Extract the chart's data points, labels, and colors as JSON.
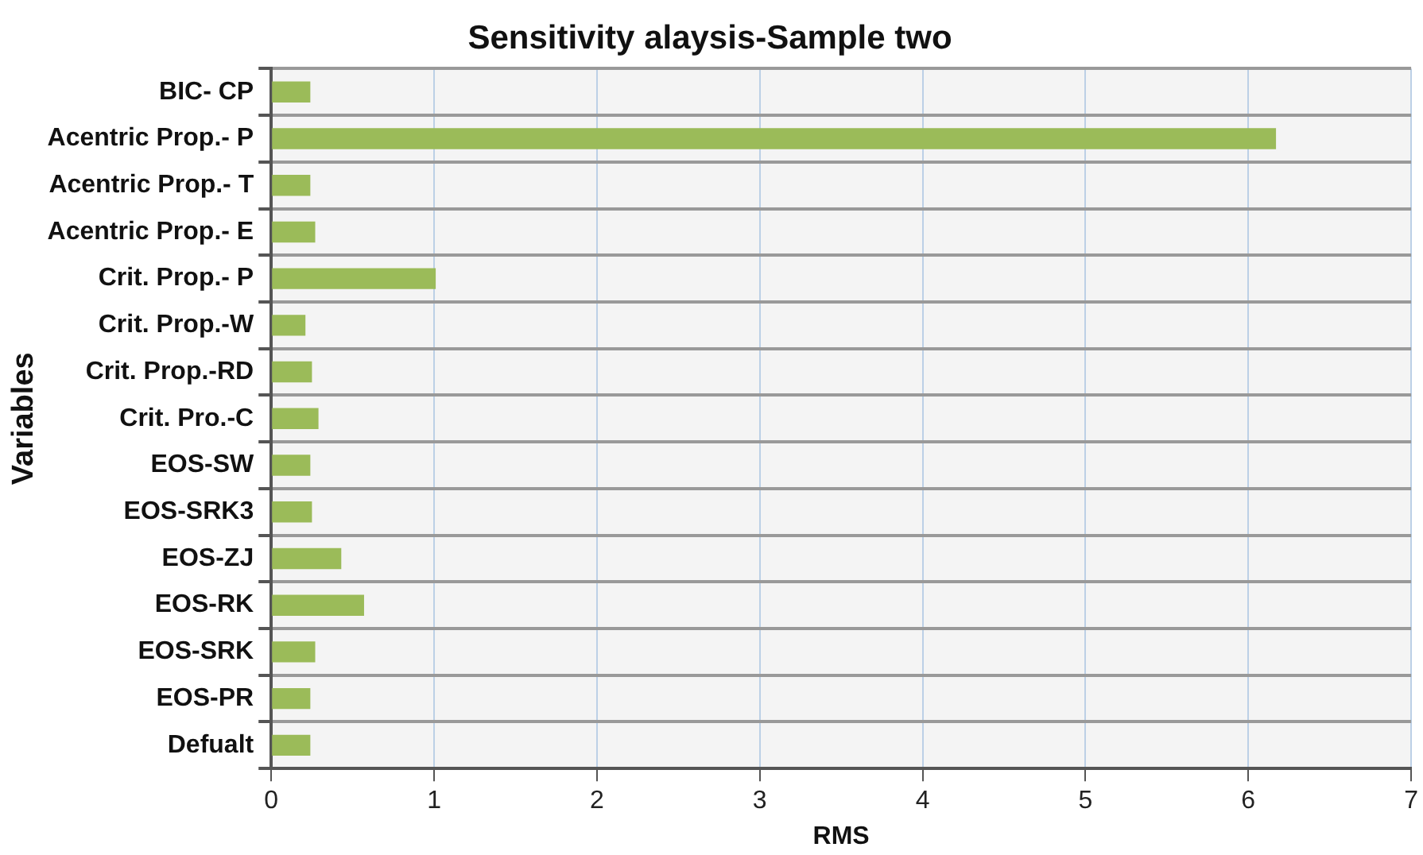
{
  "chart_data": {
    "type": "bar",
    "orientation": "horizontal",
    "title": "Sensitivity alaysis-Sample two",
    "xlabel": "RMS",
    "ylabel": "Variables",
    "categories": [
      "BIC- CP",
      "Acentric Prop.- P",
      "Acentric Prop.- T",
      "Acentric Prop.- E",
      "Crit. Prop.- P",
      "Crit. Prop.-W",
      "Crit. Prop.-RD",
      "Crit. Pro.-C",
      "EOS-SW",
      "EOS-SRK3",
      "EOS-ZJ",
      "EOS-RK",
      "EOS-SRK",
      "EOS-PR",
      "Defualt"
    ],
    "values": [
      0.24,
      6.17,
      0.24,
      0.27,
      1.01,
      0.21,
      0.25,
      0.29,
      0.24,
      0.25,
      0.43,
      0.57,
      0.27,
      0.24,
      0.24
    ],
    "color": "#9bbb59",
    "xlim": [
      0,
      7
    ],
    "xticks": [
      0,
      1,
      2,
      3,
      4,
      5,
      6,
      7
    ],
    "grid": true,
    "legend": false
  }
}
